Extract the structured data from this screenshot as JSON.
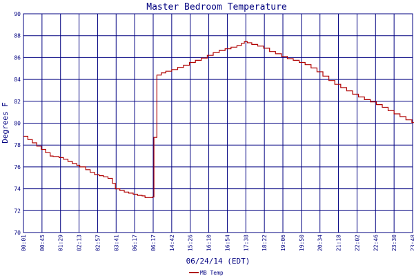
{
  "chart_data": {
    "type": "line",
    "title": "Master Bedroom Temperature",
    "xlabel": "06/24/14 (EDT)",
    "ylabel": "Degrees F",
    "ylim": [
      70,
      90
    ],
    "yticks": [
      70,
      72,
      74,
      76,
      78,
      80,
      82,
      84,
      86,
      88,
      90
    ],
    "xticks": [
      "00:01",
      "00:45",
      "01:29",
      "02:13",
      "02:57",
      "03:41",
      "06:17",
      "06:17",
      "14:42",
      "15:26",
      "16:10",
      "16:54",
      "17:38",
      "18:22",
      "19:06",
      "19:50",
      "20:34",
      "21:18",
      "22:02",
      "22:46",
      "23:30",
      "23:48"
    ],
    "grid": true,
    "legend_position": "bottom-left",
    "colors": {
      "series": "#b00000",
      "grid": "#000080",
      "text": "#000080"
    },
    "series": [
      {
        "name": "MB Temp",
        "points": [
          [
            0.0,
            78.8
          ],
          [
            0.03,
            78.5
          ],
          [
            0.06,
            78.2
          ],
          [
            0.09,
            77.9
          ],
          [
            0.12,
            77.6
          ],
          [
            0.15,
            77.3
          ],
          [
            0.18,
            77.0
          ],
          [
            0.2,
            76.95
          ],
          [
            0.24,
            76.85
          ],
          [
            0.27,
            76.7
          ],
          [
            0.3,
            76.5
          ],
          [
            0.33,
            76.3
          ],
          [
            0.36,
            76.15
          ],
          [
            0.38,
            76.0
          ],
          [
            0.42,
            75.75
          ],
          [
            0.45,
            75.5
          ],
          [
            0.48,
            75.3
          ],
          [
            0.51,
            75.2
          ],
          [
            0.54,
            75.1
          ],
          [
            0.57,
            74.95
          ],
          [
            0.6,
            74.5
          ],
          [
            0.62,
            74.0
          ],
          [
            0.65,
            73.85
          ],
          [
            0.68,
            73.7
          ],
          [
            0.71,
            73.6
          ],
          [
            0.74,
            73.5
          ],
          [
            0.77,
            73.4
          ],
          [
            0.8,
            73.35
          ],
          [
            0.82,
            73.2
          ],
          [
            0.85,
            73.2
          ],
          [
            0.87,
            73.25
          ],
          [
            0.88,
            78.7
          ],
          [
            0.9,
            84.4
          ],
          [
            0.93,
            84.6
          ],
          [
            0.96,
            84.75
          ],
          [
            1.0,
            84.9
          ],
          [
            1.04,
            85.1
          ],
          [
            1.08,
            85.3
          ],
          [
            1.12,
            85.55
          ],
          [
            1.16,
            85.75
          ],
          [
            1.2,
            85.95
          ],
          [
            1.24,
            86.2
          ],
          [
            1.28,
            86.45
          ],
          [
            1.32,
            86.65
          ],
          [
            1.36,
            86.8
          ],
          [
            1.4,
            86.95
          ],
          [
            1.44,
            87.1
          ],
          [
            1.47,
            87.3
          ],
          [
            1.49,
            87.45
          ],
          [
            1.51,
            87.35
          ],
          [
            1.54,
            87.2
          ],
          [
            1.58,
            87.05
          ],
          [
            1.62,
            86.85
          ],
          [
            1.66,
            86.55
          ],
          [
            1.7,
            86.35
          ],
          [
            1.74,
            86.1
          ],
          [
            1.78,
            85.9
          ],
          [
            1.82,
            85.75
          ],
          [
            1.86,
            85.55
          ],
          [
            1.9,
            85.35
          ],
          [
            1.94,
            85.05
          ],
          [
            1.98,
            84.7
          ],
          [
            2.02,
            84.3
          ],
          [
            2.06,
            83.9
          ],
          [
            2.1,
            83.55
          ],
          [
            2.14,
            83.25
          ],
          [
            2.18,
            82.95
          ],
          [
            2.22,
            82.65
          ],
          [
            2.26,
            82.4
          ],
          [
            2.3,
            82.15
          ],
          [
            2.34,
            81.95
          ],
          [
            2.38,
            81.7
          ],
          [
            2.42,
            81.45
          ],
          [
            2.46,
            81.15
          ],
          [
            2.5,
            80.85
          ],
          [
            2.54,
            80.6
          ],
          [
            2.58,
            80.3
          ],
          [
            2.62,
            80.05
          ],
          [
            2.66,
            79.8
          ],
          [
            2.69,
            79.6
          ],
          [
            2.71,
            79.4
          ]
        ]
      }
    ]
  }
}
